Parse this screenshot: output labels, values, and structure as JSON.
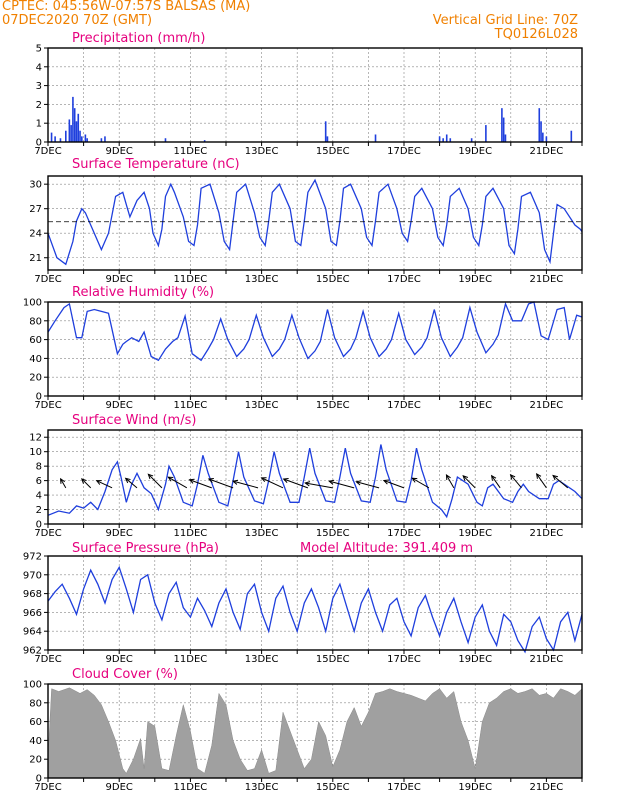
{
  "header": {
    "station": "CPTEC:   045:56W-07:57S   BALSAS (MA)",
    "date": "07DEC2020 70Z (GMT)",
    "grid": "Vertical Grid Line: 70Z",
    "code": "TQ0126L028",
    "model_altitude": "Model Altitude: 391.409 m"
  },
  "colors": {
    "header": "#f08000",
    "title": "#e6007e",
    "line": "#1f3fdd",
    "cloud": "#a0a0a0"
  },
  "x_axis": {
    "start_day": 7,
    "end_day": 22,
    "ticks": [
      "7DEC",
      "9DEC",
      "11DEC",
      "13DEC",
      "15DEC",
      "17DEC",
      "19DEC",
      "21DEC"
    ],
    "tick_days": [
      7,
      9,
      11,
      13,
      15,
      17,
      19,
      21
    ]
  },
  "chart_data": [
    {
      "type": "bar",
      "title": "Precipitation (mm/h)",
      "ylim": [
        0,
        5
      ],
      "yticks": [
        "0",
        "1",
        "2",
        "3",
        "4",
        "5"
      ],
      "x": [
        7.1,
        7.2,
        7.35,
        7.5,
        7.6,
        7.65,
        7.7,
        7.75,
        7.8,
        7.85,
        7.9,
        7.95,
        8.05,
        8.1,
        8.5,
        8.6,
        10.3,
        11.4,
        14.8,
        14.85,
        16.2,
        18.0,
        18.1,
        18.2,
        18.3,
        18.9,
        19.3,
        19.75,
        19.8,
        19.85,
        20.8,
        20.85,
        20.9,
        21.0,
        21.7
      ],
      "values": [
        0.5,
        0.3,
        0.2,
        0.6,
        1.2,
        0.9,
        2.4,
        1.8,
        1.1,
        1.5,
        0.6,
        0.3,
        0.4,
        0.2,
        0.2,
        0.3,
        0.2,
        0.1,
        1.1,
        0.3,
        0.4,
        0.3,
        0.2,
        0.4,
        0.2,
        0.2,
        0.9,
        1.8,
        1.3,
        0.4,
        1.8,
        1.1,
        0.5,
        0.3,
        0.6
      ]
    },
    {
      "type": "line",
      "title": "Surface Temperature (nC)",
      "ylim": [
        19.5,
        31
      ],
      "yticks": [
        "21",
        "24",
        "27",
        "30"
      ],
      "ytick_values": [
        21,
        24,
        27,
        30
      ],
      "mean": 25.4,
      "x": [
        7.0,
        7.25,
        7.5,
        7.7,
        7.8,
        7.95,
        8.05,
        8.2,
        8.5,
        8.7,
        8.9,
        9.1,
        9.2,
        9.3,
        9.5,
        9.7,
        9.85,
        9.95,
        10.1,
        10.2,
        10.3,
        10.45,
        10.55,
        10.8,
        10.95,
        11.1,
        11.2,
        11.3,
        11.55,
        11.8,
        11.95,
        12.1,
        12.2,
        12.3,
        12.55,
        12.8,
        12.95,
        13.1,
        13.2,
        13.3,
        13.5,
        13.8,
        13.95,
        14.1,
        14.2,
        14.3,
        14.5,
        14.8,
        14.95,
        15.1,
        15.2,
        15.3,
        15.5,
        15.8,
        15.95,
        16.1,
        16.2,
        16.3,
        16.55,
        16.8,
        16.95,
        17.1,
        17.2,
        17.3,
        17.5,
        17.8,
        17.95,
        18.1,
        18.2,
        18.3,
        18.55,
        18.8,
        18.95,
        19.1,
        19.2,
        19.3,
        19.5,
        19.8,
        19.95,
        20.1,
        20.2,
        20.3,
        20.55,
        20.8,
        20.95,
        21.1,
        21.2,
        21.3,
        21.5,
        21.8,
        21.95,
        22.0
      ],
      "values": [
        24.0,
        21.0,
        20.2,
        23.0,
        25.5,
        27.0,
        26.5,
        25.0,
        22.0,
        24.0,
        28.5,
        29.0,
        27.5,
        26.0,
        28.0,
        29.0,
        27.0,
        24.0,
        22.5,
        24.5,
        28.5,
        30.0,
        29.0,
        26.0,
        23.0,
        22.5,
        25.0,
        29.5,
        30.0,
        26.5,
        23.0,
        22.0,
        25.5,
        29.0,
        30.0,
        26.5,
        23.5,
        22.5,
        25.5,
        29.0,
        30.0,
        27.0,
        23.0,
        22.5,
        25.5,
        29.0,
        30.5,
        27.0,
        23.0,
        22.5,
        25.5,
        29.5,
        30.0,
        27.0,
        23.5,
        22.5,
        25.5,
        29.0,
        30.0,
        27.0,
        24.0,
        23.0,
        25.5,
        28.5,
        29.5,
        27.0,
        23.5,
        22.5,
        25.0,
        28.5,
        29.5,
        27.0,
        23.5,
        22.5,
        25.0,
        28.5,
        29.5,
        27.0,
        22.5,
        21.5,
        24.5,
        28.5,
        29.0,
        26.5,
        22.0,
        20.5,
        24.0,
        27.5,
        27.0,
        25.0,
        24.5,
        24.2
      ]
    },
    {
      "type": "line",
      "title": "Relative Humidity (%)",
      "ylim": [
        0,
        100
      ],
      "yticks": [
        "0",
        "20",
        "40",
        "60",
        "80",
        "100"
      ],
      "ytick_values": [
        0,
        20,
        40,
        60,
        80,
        100
      ],
      "x": [
        7.0,
        7.2,
        7.45,
        7.6,
        7.8,
        7.95,
        8.1,
        8.3,
        8.5,
        8.7,
        8.95,
        9.1,
        9.2,
        9.35,
        9.55,
        9.7,
        9.9,
        10.1,
        10.3,
        10.5,
        10.65,
        10.85,
        11.05,
        11.3,
        11.5,
        11.65,
        11.85,
        12.05,
        12.3,
        12.5,
        12.65,
        12.85,
        13.05,
        13.3,
        13.5,
        13.65,
        13.85,
        14.05,
        14.3,
        14.5,
        14.65,
        14.85,
        15.05,
        15.3,
        15.5,
        15.65,
        15.85,
        16.05,
        16.3,
        16.5,
        16.65,
        16.85,
        17.05,
        17.3,
        17.5,
        17.65,
        17.85,
        18.05,
        18.3,
        18.5,
        18.65,
        18.85,
        19.05,
        19.3,
        19.5,
        19.65,
        19.85,
        20.05,
        20.3,
        20.5,
        20.65,
        20.85,
        21.05,
        21.3,
        21.5,
        21.65,
        21.85,
        22.0
      ],
      "values": [
        68,
        80,
        94,
        98,
        62,
        62,
        90,
        92,
        90,
        88,
        45,
        55,
        58,
        62,
        58,
        68,
        42,
        38,
        50,
        58,
        62,
        85,
        45,
        38,
        50,
        60,
        82,
        60,
        42,
        50,
        60,
        86,
        62,
        42,
        50,
        60,
        86,
        62,
        40,
        48,
        58,
        92,
        62,
        42,
        50,
        62,
        90,
        62,
        42,
        50,
        60,
        88,
        60,
        44,
        52,
        62,
        92,
        62,
        42,
        52,
        62,
        94,
        68,
        46,
        55,
        65,
        98,
        80,
        80,
        98,
        100,
        64,
        60,
        92,
        94,
        60,
        86,
        84
      ]
    },
    {
      "type": "line",
      "title": "Surface Wind (m/s)",
      "ylim": [
        0,
        13
      ],
      "yticks": [
        "0",
        "2",
        "4",
        "6",
        "8",
        "10",
        "12"
      ],
      "ytick_values": [
        0,
        2,
        4,
        6,
        8,
        10,
        12
      ],
      "x": [
        7.0,
        7.3,
        7.6,
        7.8,
        8.0,
        8.2,
        8.4,
        8.6,
        8.8,
        8.95,
        9.05,
        9.2,
        9.35,
        9.5,
        9.7,
        9.9,
        10.1,
        10.3,
        10.4,
        10.55,
        10.8,
        11.05,
        11.2,
        11.35,
        11.5,
        11.8,
        12.05,
        12.2,
        12.35,
        12.5,
        12.8,
        13.05,
        13.2,
        13.35,
        13.5,
        13.8,
        14.05,
        14.2,
        14.35,
        14.5,
        14.8,
        15.05,
        15.2,
        15.35,
        15.5,
        15.8,
        16.05,
        16.2,
        16.35,
        16.5,
        16.8,
        17.05,
        17.2,
        17.35,
        17.5,
        17.8,
        18.05,
        18.2,
        18.35,
        18.5,
        18.8,
        19.05,
        19.2,
        19.35,
        19.5,
        19.8,
        20.05,
        20.2,
        20.35,
        20.5,
        20.8,
        21.05,
        21.2,
        21.35,
        21.5,
        21.8,
        22.0
      ],
      "values": [
        1.2,
        1.8,
        1.5,
        2.5,
        2.2,
        3.0,
        2.0,
        4.5,
        7.5,
        8.6,
        6.5,
        3.0,
        5.5,
        7.0,
        5.0,
        4.2,
        2.0,
        5.5,
        8.0,
        6.5,
        3.0,
        2.5,
        5.5,
        9.5,
        7.0,
        3.0,
        2.5,
        6.0,
        10.0,
        6.5,
        3.2,
        2.8,
        6.0,
        10.0,
        7.0,
        3.0,
        3.0,
        6.5,
        10.5,
        7.0,
        3.2,
        3.0,
        6.5,
        10.5,
        7.0,
        3.2,
        3.0,
        6.5,
        11.0,
        7.5,
        3.2,
        3.0,
        6.0,
        10.5,
        7.5,
        3.0,
        2.0,
        1.0,
        3.5,
        6.5,
        5.5,
        3.0,
        2.5,
        5.0,
        5.5,
        3.5,
        3.0,
        4.5,
        5.5,
        4.5,
        3.5,
        3.5,
        5.5,
        6.0,
        5.5,
        4.5,
        3.5
      ],
      "arrows_x": [
        7.5,
        8.2,
        8.8,
        9.5,
        10.2,
        10.9,
        11.6,
        12.2,
        12.9,
        13.6,
        14.3,
        15.0,
        15.6,
        16.3,
        17.0,
        17.7,
        18.4,
        19.0,
        19.7,
        20.3,
        21.0,
        21.6
      ],
      "arrows_dir_deg": [
        300,
        315,
        335,
        320,
        315,
        330,
        340,
        340,
        345,
        335,
        340,
        350,
        345,
        345,
        340,
        330,
        300,
        315,
        305,
        310,
        305,
        320
      ],
      "arrows_speed": [
        2,
        3,
        5,
        4,
        6,
        7,
        8,
        9,
        9,
        8,
        9,
        10,
        9,
        8,
        7,
        6,
        4,
        5,
        4,
        5,
        5,
        6
      ]
    },
    {
      "type": "line",
      "title": "Surface Pressure (hPa)",
      "ylim": [
        962,
        972
      ],
      "yticks": [
        "962",
        "964",
        "966",
        "968",
        "970",
        "972"
      ],
      "ytick_values": [
        962,
        964,
        966,
        968,
        970,
        972
      ],
      "x": [
        7.0,
        7.2,
        7.4,
        7.6,
        7.8,
        8.0,
        8.2,
        8.4,
        8.6,
        8.8,
        9.0,
        9.2,
        9.4,
        9.6,
        9.8,
        10.0,
        10.2,
        10.4,
        10.6,
        10.8,
        11.0,
        11.2,
        11.4,
        11.6,
        11.8,
        12.0,
        12.2,
        12.4,
        12.6,
        12.8,
        13.0,
        13.2,
        13.4,
        13.6,
        13.8,
        14.0,
        14.2,
        14.4,
        14.6,
        14.8,
        15.0,
        15.2,
        15.4,
        15.6,
        15.8,
        16.0,
        16.2,
        16.4,
        16.6,
        16.8,
        17.0,
        17.2,
        17.4,
        17.6,
        17.8,
        18.0,
        18.2,
        18.4,
        18.6,
        18.8,
        19.0,
        19.2,
        19.4,
        19.6,
        19.8,
        20.0,
        20.2,
        20.4,
        20.6,
        20.8,
        21.0,
        21.2,
        21.4,
        21.6,
        21.8,
        22.0
      ],
      "values": [
        967.2,
        968.2,
        969.0,
        967.5,
        965.8,
        968.5,
        970.5,
        969.0,
        967.0,
        969.5,
        970.8,
        968.5,
        966.0,
        969.5,
        970.0,
        967.0,
        965.2,
        968.0,
        969.2,
        966.5,
        965.5,
        967.5,
        966.2,
        964.5,
        967.0,
        968.5,
        966.0,
        964.2,
        968.0,
        969.0,
        966.0,
        964.0,
        967.5,
        968.8,
        966.0,
        964.0,
        967.0,
        968.5,
        966.5,
        964.0,
        967.5,
        969.0,
        966.5,
        964.0,
        967.0,
        968.5,
        966.0,
        964.0,
        966.8,
        967.5,
        965.0,
        963.5,
        966.5,
        967.8,
        965.5,
        963.5,
        966.0,
        967.5,
        965.0,
        962.8,
        965.5,
        966.8,
        964.0,
        962.5,
        965.8,
        965.0,
        963.0,
        961.8,
        964.5,
        965.5,
        963.2,
        962.0,
        965.0,
        966.0,
        963.0,
        965.8
      ]
    },
    {
      "type": "area",
      "title": "Cloud Cover (%)",
      "ylim": [
        0,
        100
      ],
      "yticks": [
        "0",
        "20",
        "40",
        "60",
        "80",
        "100"
      ],
      "ytick_values": [
        0,
        20,
        40,
        60,
        80,
        100
      ],
      "x": [
        7.0,
        7.1,
        7.3,
        7.6,
        7.9,
        8.1,
        8.3,
        8.5,
        8.7,
        8.9,
        9.1,
        9.2,
        9.4,
        9.6,
        9.7,
        9.8,
        10.0,
        10.2,
        10.4,
        10.6,
        10.8,
        11.0,
        11.2,
        11.4,
        11.6,
        11.8,
        12.0,
        12.2,
        12.4,
        12.6,
        12.8,
        13.0,
        13.2,
        13.4,
        13.6,
        13.8,
        14.0,
        14.2,
        14.4,
        14.6,
        14.8,
        15.0,
        15.2,
        15.4,
        15.6,
        15.8,
        16.0,
        16.2,
        16.4,
        16.6,
        16.8,
        17.0,
        17.2,
        17.4,
        17.6,
        17.8,
        18.0,
        18.2,
        18.4,
        18.6,
        18.8,
        19.0,
        19.2,
        19.4,
        19.6,
        19.8,
        20.0,
        20.2,
        20.4,
        20.6,
        20.8,
        21.0,
        21.2,
        21.4,
        21.6,
        21.8,
        22.0
      ],
      "values": [
        20,
        95,
        92,
        96,
        90,
        94,
        88,
        78,
        60,
        40,
        10,
        5,
        20,
        42,
        10,
        60,
        55,
        10,
        8,
        45,
        78,
        50,
        10,
        5,
        35,
        90,
        78,
        40,
        20,
        8,
        10,
        30,
        5,
        8,
        70,
        50,
        30,
        10,
        20,
        60,
        45,
        12,
        30,
        60,
        75,
        55,
        70,
        90,
        92,
        95,
        92,
        90,
        88,
        85,
        82,
        90,
        95,
        85,
        92,
        60,
        40,
        10,
        60,
        80,
        85,
        92,
        95,
        90,
        92,
        95,
        88,
        90,
        85,
        95,
        92,
        88,
        95
      ]
    }
  ]
}
